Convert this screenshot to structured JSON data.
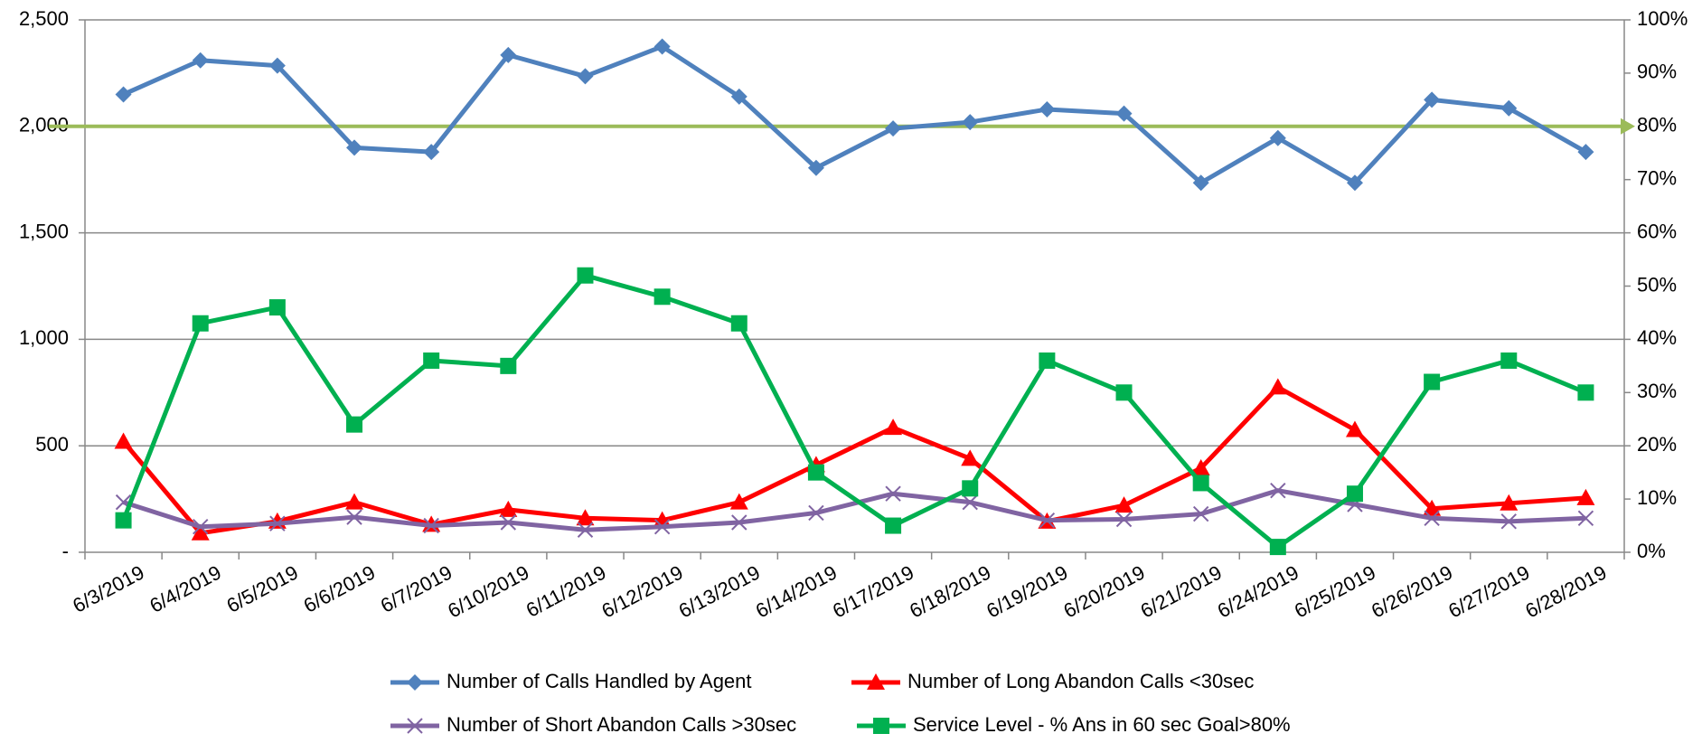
{
  "chart_data": {
    "type": "line",
    "categories": [
      "6/3/2019",
      "6/4/2019",
      "6/5/2019",
      "6/6/2019",
      "6/7/2019",
      "6/10/2019",
      "6/11/2019",
      "6/12/2019",
      "6/13/2019",
      "6/14/2019",
      "6/17/2019",
      "6/18/2019",
      "6/19/2019",
      "6/20/2019",
      "6/21/2019",
      "6/24/2019",
      "6/25/2019",
      "6/26/2019",
      "6/27/2019",
      "6/28/2019"
    ],
    "series": [
      {
        "name": "Number of Calls Handled by Agent",
        "color": "#4f81bd",
        "marker": "diamond",
        "values": [
          2150,
          2310,
          2285,
          1900,
          1880,
          2335,
          2235,
          2375,
          2140,
          1805,
          1990,
          2020,
          2080,
          2060,
          1735,
          1945,
          1735,
          2125,
          2085,
          1880
        ]
      },
      {
        "name": "Number of Long Abandon Calls <30sec",
        "color": "#ff0000",
        "marker": "triangle",
        "values": [
          520,
          90,
          145,
          235,
          130,
          200,
          160,
          150,
          235,
          410,
          585,
          440,
          145,
          220,
          395,
          775,
          575,
          205,
          230,
          255
        ]
      },
      {
        "name": "Number of Short Abandon Calls >30sec",
        "color": "#8064a2",
        "marker": "x",
        "values": [
          235,
          120,
          135,
          165,
          125,
          140,
          105,
          120,
          140,
          185,
          275,
          235,
          150,
          155,
          180,
          290,
          225,
          160,
          145,
          160
        ]
      },
      {
        "name": "Service Level - % Ans in 60 sec Goal>80%",
        "color": "#00b050",
        "marker": "square",
        "axis": "y2",
        "values": [
          6,
          43,
          46,
          24,
          36,
          35,
          52,
          48,
          43,
          15,
          5,
          12,
          36,
          30,
          13,
          1,
          11,
          32,
          36,
          30
        ]
      }
    ],
    "reference_line": {
      "value": 80,
      "axis": "y2",
      "color": "#9bbb59"
    },
    "ylim": [
      0,
      2500
    ],
    "yticks": [
      {
        "value": 0,
        "label": "-"
      },
      500,
      {
        "value": 1000,
        "label": "1,000"
      },
      {
        "value": 1500,
        "label": "1,500"
      },
      {
        "value": 2000,
        "label": "2,000"
      },
      {
        "value": 2500,
        "label": "2,500"
      }
    ],
    "y2lim": [
      0,
      100
    ],
    "y2ticks": [
      {
        "value": 0,
        "label": "0%"
      },
      {
        "value": 10,
        "label": "10%"
      },
      {
        "value": 20,
        "label": "20%"
      },
      {
        "value": 30,
        "label": "30%"
      },
      {
        "value": 40,
        "label": "40%"
      },
      {
        "value": 50,
        "label": "50%"
      },
      {
        "value": 60,
        "label": "60%"
      },
      {
        "value": 70,
        "label": "70%"
      },
      {
        "value": 80,
        "label": "80%"
      },
      {
        "value": 90,
        "label": "90%"
      },
      {
        "value": 100,
        "label": "100%"
      }
    ],
    "grid": true,
    "legend": "bottom"
  }
}
